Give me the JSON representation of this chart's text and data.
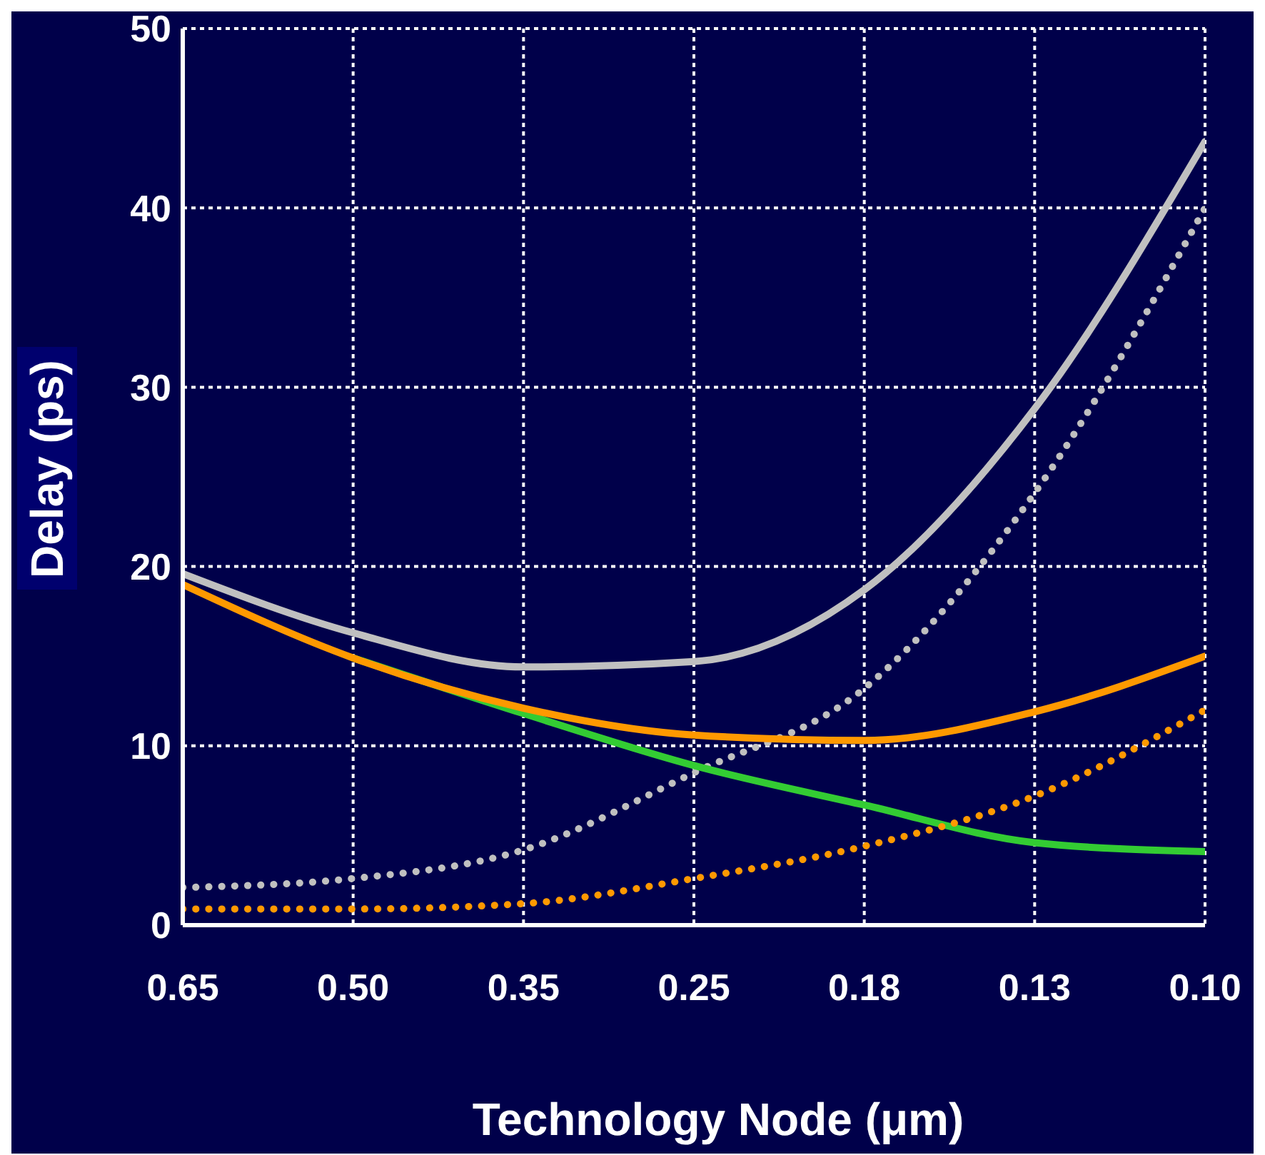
{
  "chart_data": {
    "type": "line",
    "xlabel": "Technology Node (μm)",
    "ylabel": "Delay (ps)",
    "categories": [
      "0.65",
      "0.50",
      "0.35",
      "0.25",
      "0.18",
      "0.13",
      "0.10"
    ],
    "series": [
      {
        "color": "#c0c0c0",
        "line_style": "solid",
        "values": [
          19.6,
          16.3,
          14.4,
          14.7,
          18.7,
          28.8,
          43.7
        ]
      },
      {
        "color": "#c0c0c0",
        "line_style": "dotted",
        "values": [
          2.1,
          2.6,
          4.2,
          8.5,
          13.2,
          24.1,
          40
        ]
      },
      {
        "color": "#33cc33",
        "line_style": "solid",
        "values": [
          null,
          14.9,
          11.8,
          8.9,
          6.7,
          4.6,
          4.1
        ]
      },
      {
        "color": "#ff9900",
        "line_style": "solid",
        "values": [
          19.0,
          14.9,
          12.1,
          10.6,
          10.3,
          11.9,
          15
        ]
      },
      {
        "color": "#ff9900",
        "line_style": "dotted",
        "values": [
          0.9,
          0.9,
          1.2,
          2.6,
          4.4,
          7.2,
          12.0
        ]
      }
    ],
    "ylim": [
      0,
      50
    ],
    "yticks": [
      0,
      10,
      20,
      30,
      40,
      50
    ],
    "grid": true,
    "marker": "none"
  }
}
